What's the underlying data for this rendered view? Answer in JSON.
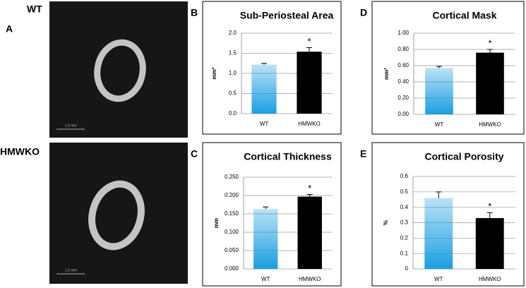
{
  "panel_a": {
    "letter": "A",
    "images": [
      {
        "label": "WT",
        "scale_bar": "1.0 mm"
      },
      {
        "label": "HMWKO",
        "scale_bar": "1.0 mm"
      }
    ]
  },
  "chart_data": [
    {
      "type": "bar",
      "letter": "B",
      "title": "Sub-Periosteal Area",
      "y_label": "mm²",
      "categories": [
        "WT",
        "HMWKO"
      ],
      "values": [
        1.22,
        1.54
      ],
      "errors": [
        0.03,
        0.1
      ],
      "colors": [
        "#1a9fe0",
        "#000000"
      ],
      "gradient": [
        true,
        false
      ],
      "annotation": "*",
      "ylim": [
        0,
        2
      ],
      "yticks": [
        {
          "value": 0,
          "label": "0.0"
        },
        0.5,
        {
          "value": 1,
          "label": "1.0"
        },
        1.5,
        {
          "value": 2,
          "label": "2.0"
        }
      ],
      "grid": true
    },
    {
      "type": "bar",
      "letter": "D",
      "title": "Cortical Mask",
      "y_label": "mm²",
      "categories": [
        "WT",
        "HMWKO"
      ],
      "values": [
        0.57,
        0.76
      ],
      "errors": [
        0.02,
        0.04
      ],
      "colors": [
        "#1a9fe0",
        "#000000"
      ],
      "gradient": [
        true,
        false
      ],
      "annotation": "*",
      "ylim": [
        0,
        1
      ],
      "yticks": [
        {
          "value": 0,
          "label": "0.00"
        },
        {
          "value": 0.2,
          "label": "0.20"
        },
        {
          "value": 0.4,
          "label": "0.40"
        },
        {
          "value": 0.6,
          "label": "0.60"
        },
        {
          "value": 0.8,
          "label": "0.80"
        },
        {
          "value": 1,
          "label": "1.00"
        }
      ],
      "grid": true
    },
    {
      "type": "bar",
      "letter": "C",
      "title": "Cortical Thickness",
      "y_label": "mm",
      "categories": [
        "WT",
        "HMWKO"
      ],
      "values": [
        0.163,
        0.197
      ],
      "errors": [
        0.006,
        0.006
      ],
      "colors": [
        "#1a9fe0",
        "#000000"
      ],
      "gradient": [
        true,
        false
      ],
      "annotation": "*",
      "ylim": [
        0,
        0.25
      ],
      "yticks": [
        {
          "value": 0,
          "label": "0.000"
        },
        {
          "value": 0.05,
          "label": "0.050"
        },
        {
          "value": 0.1,
          "label": "0.100"
        },
        {
          "value": 0.15,
          "label": "0.150"
        },
        {
          "value": 0.2,
          "label": "0.200"
        },
        {
          "value": 0.25,
          "label": "0.250"
        }
      ],
      "grid": true
    },
    {
      "type": "bar",
      "letter": "E",
      "title": "Cortical Porosity",
      "y_label": "%",
      "categories": [
        "WT",
        "HMWKO"
      ],
      "values": [
        0.46,
        0.33
      ],
      "errors": [
        0.04,
        0.035
      ],
      "colors": [
        "#1a9fe0",
        "#000000"
      ],
      "gradient": [
        true,
        false
      ],
      "annotation": "*",
      "ylim": [
        0,
        0.6
      ],
      "yticks": [
        0,
        0.1,
        0.2,
        0.3,
        0.4,
        0.5,
        0.6
      ],
      "grid": true
    }
  ]
}
